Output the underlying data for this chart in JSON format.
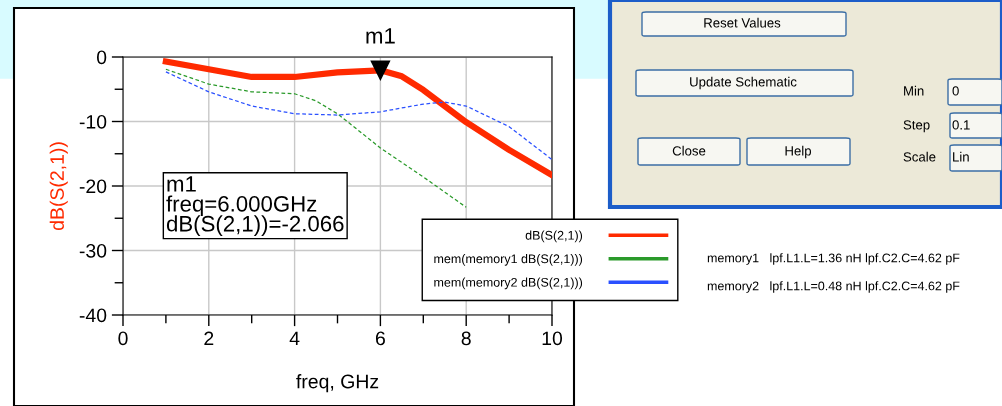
{
  "chart_data": {
    "type": "line",
    "xlabel": "freq, GHz",
    "ylabel": "dB(S(2,1))",
    "xlim": [
      0,
      10
    ],
    "ylim": [
      -40,
      0
    ],
    "xticks": [
      0,
      {
        "value": 1,
        "label": null
      },
      2,
      {
        "value": 3,
        "label": null
      },
      4,
      {
        "value": 5,
        "label": null
      },
      6,
      {
        "value": 7,
        "label": null
      },
      8,
      {
        "value": 9,
        "label": null
      },
      10
    ],
    "yticks": [
      {
        "value": -40,
        "label": "-40"
      },
      {
        "value": -35,
        "label": null
      },
      {
        "value": -30,
        "label": "-30"
      },
      {
        "value": -25,
        "label": null
      },
      {
        "value": -20,
        "label": "-20"
      },
      {
        "value": -15,
        "label": null
      },
      {
        "value": -10,
        "label": "-10"
      },
      {
        "value": -5,
        "label": null
      },
      0
    ],
    "grid": true,
    "legend": "bottom right",
    "series": [
      {
        "name": "dB(S(2,1))",
        "color": "#ff2a00",
        "line_style": "solid",
        "x": [
          1,
          2,
          3,
          4,
          5,
          6,
          6.5,
          7,
          8,
          9,
          10
        ],
        "values": [
          -0.7,
          -1.9,
          -3.1,
          -3.1,
          -2.4,
          -2.066,
          -3.0,
          -5.1,
          -10.1,
          -14.4,
          -18.3
        ]
      },
      {
        "name": "mem(memory1 dB(S(2,1)))",
        "color": "#2a9a2a",
        "line_style": "dashed",
        "x": [
          1,
          2,
          3,
          4,
          4.5,
          5,
          6,
          7,
          8
        ],
        "values": [
          -1.9,
          -4.2,
          -5.4,
          -5.7,
          -6.8,
          -8.8,
          -14.1,
          -18.6,
          -23.3
        ]
      },
      {
        "name": "mem(memory2 dB(S(2,1)))",
        "color": "#2a50ff",
        "line_style": "dashed",
        "x": [
          1,
          2,
          3,
          4,
          5,
          6,
          7,
          7.5,
          8,
          9,
          10
        ],
        "values": [
          -2.3,
          -5.4,
          -7.6,
          -8.8,
          -9.0,
          -8.5,
          -7.3,
          -7.0,
          -7.6,
          -10.8,
          -15.9
        ]
      }
    ],
    "annotations": [
      {
        "text": "m1",
        "x": 6,
        "y": -2.066
      },
      "m1\nfreq=6.000GHz\ndB(S(2,1))=-2.066",
      "memory1   lpf.L1.L=1.36 nH lpf.C2.C=4.62 pF",
      "memory2   lpf.L1.L=0.48 nH lpf.C2.C=4.62 pF",
      "Reset Values",
      "Update Schematic",
      "Close",
      "Help",
      "Min",
      "0",
      "Step",
      "0.1",
      "Scale",
      "Lin"
    ]
  }
}
